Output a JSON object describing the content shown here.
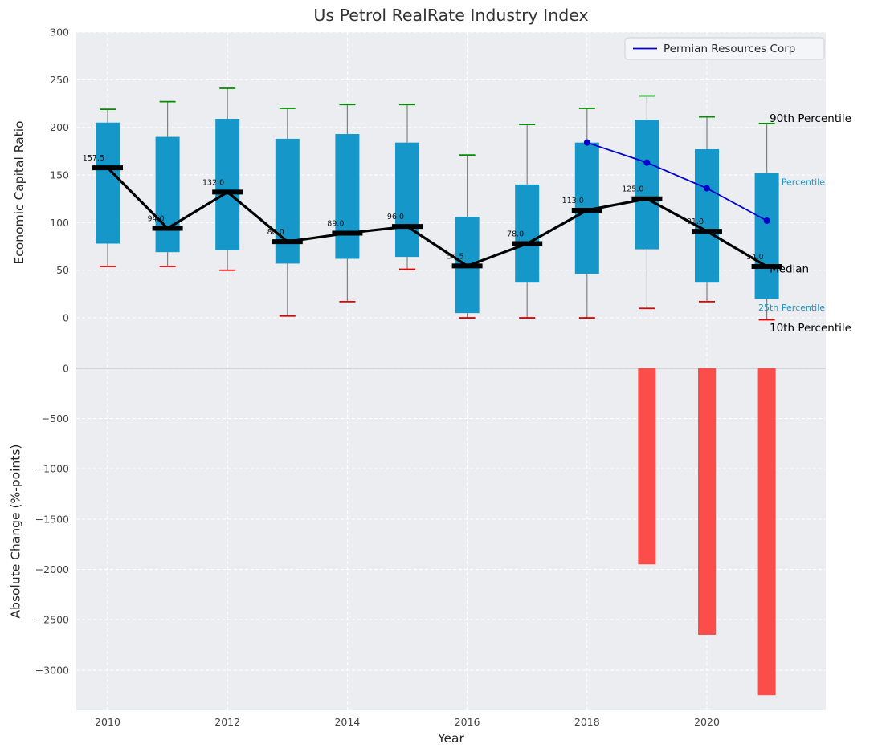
{
  "title": "Us Petrol RealRate Industry Index",
  "legend": {
    "label": "Permian Resources Corp"
  },
  "colors": {
    "plot_background": "#ecedf0",
    "grid": "#ffffff",
    "box_fill": "#1697c9",
    "whisker": "#808080",
    "cap_90th": "#008f00",
    "cap_10th": "#e00000",
    "median": "#000000",
    "company_line": "#0000cc",
    "negative_bar": "#fb4e4a",
    "zero_line": "#aaaaaa",
    "annotation_black": "#000000",
    "annotation_cyan": "#1697c9",
    "tick_text": "#444444"
  },
  "x_axis": {
    "xlabel": "Year",
    "tick_values": [
      2010,
      2012,
      2014,
      2016,
      2018,
      2020
    ],
    "tick_labels": [
      "2010",
      "2012",
      "2014",
      "2016",
      "2018",
      "2020"
    ]
  },
  "chart_data": [
    {
      "type": "boxplot",
      "title": "Us Petrol RealRate Industry Index",
      "ylabel": "Economic Capital Ratio",
      "ylim": [
        -37,
        300
      ],
      "grid": true,
      "legend_position": "upper right",
      "ytick_values": [
        0,
        50,
        100,
        150,
        200,
        250,
        300
      ],
      "ytick_labels": [
        "0",
        "50",
        "100",
        "150",
        "200",
        "250",
        "300"
      ],
      "years": [
        2010,
        2011,
        2012,
        2013,
        2014,
        2015,
        2016,
        2017,
        2018,
        2019,
        2020,
        2021
      ],
      "p90": [
        219,
        227,
        241,
        220,
        224,
        224,
        171,
        203,
        220,
        233,
        211,
        204
      ],
      "p75": [
        205,
        190,
        209,
        188,
        193,
        184,
        106,
        140,
        184,
        208,
        177,
        152
      ],
      "median": [
        157.5,
        94,
        132,
        80,
        89,
        96,
        54.5,
        78,
        113,
        125,
        91,
        54
      ],
      "p25": [
        78,
        69,
        71,
        57,
        62,
        64,
        5,
        37,
        46,
        72,
        37,
        20
      ],
      "p10": [
        54,
        54,
        50,
        2,
        17,
        51,
        0,
        0,
        0,
        10,
        17,
        -2
      ],
      "median_labels": [
        "157.5",
        "94.0",
        "132.0",
        "80.0",
        "89.0",
        "96.0",
        "54.5",
        "78.0",
        "113.0",
        "125.0",
        "91.0",
        "54.0"
      ],
      "overlay_line": {
        "name": "Permian Resources Corp",
        "x": [
          2018,
          2019,
          2020,
          2021
        ],
        "y": [
          184,
          163,
          136,
          102
        ]
      },
      "percentile_labels": [
        {
          "text": "90th Percentile",
          "value": 210,
          "style": "black"
        },
        {
          "text": "75th Percentile",
          "value": 143,
          "style": "cyan"
        },
        {
          "text": "Median",
          "value": 52,
          "style": "black"
        },
        {
          "text": "25th Percentile",
          "value": 11,
          "style": "cyan"
        },
        {
          "text": "10th Percentile",
          "value": -10,
          "style": "black"
        }
      ]
    },
    {
      "type": "bar",
      "ylabel": "Absolute Change (%-points)",
      "xlabel": "Year",
      "ylim": [
        -3400,
        150
      ],
      "grid": true,
      "ytick_values": [
        0,
        -500,
        -1000,
        -1500,
        -2000,
        -2500,
        -3000
      ],
      "ytick_labels": [
        "0",
        "−500",
        "−1000",
        "−1500",
        "−2000",
        "−2500",
        "−3000"
      ],
      "categories": [
        2019,
        2020,
        2021
      ],
      "values": [
        -1950,
        -2650,
        -3250
      ]
    }
  ]
}
